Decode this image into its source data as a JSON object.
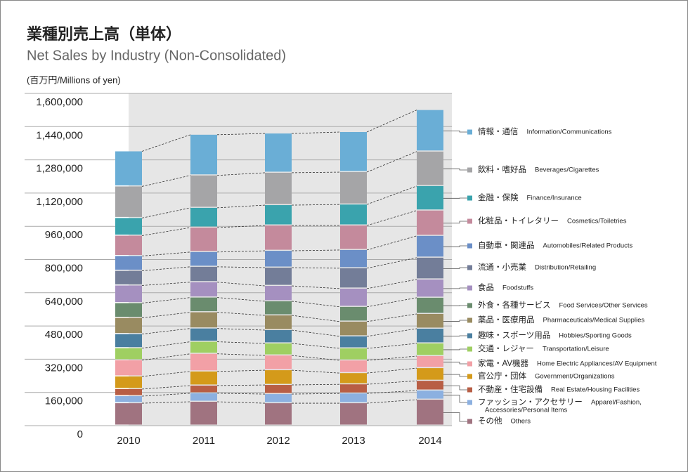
{
  "chart_data": {
    "type": "stacked_bar",
    "title": "業種別売上高（単体）",
    "subtitle": "Net Sales by Industry (Non-Consolidated)",
    "unit_label": "(百万円/Millions of yen)",
    "categories": [
      "2010",
      "2011",
      "2012",
      "2013",
      "2014"
    ],
    "ylim": [
      0,
      1600000
    ],
    "yticks": [
      0,
      {
        "value": 160000,
        "label": "160,000"
      },
      {
        "value": 320000,
        "label": "320,000"
      },
      {
        "value": 480000,
        "label": "480,000"
      },
      {
        "value": 640000,
        "label": "640,000"
      },
      {
        "value": 800000,
        "label": "800,000"
      },
      {
        "value": 960000,
        "label": "960,000"
      },
      {
        "value": 1120000,
        "label": "1,120,000"
      },
      {
        "value": 1280000,
        "label": "1,280,000"
      },
      {
        "value": 1440000,
        "label": "1,440,000"
      },
      {
        "value": 1600000,
        "label": "1,600,000"
      }
    ],
    "grid": true,
    "series": [
      {
        "name": "その他",
        "name_en": [
          "Others"
        ],
        "color": "#a07380",
        "values": [
          108000,
          115000,
          108000,
          108000,
          125000
        ]
      },
      {
        "name": "ファッション・アクセサリー",
        "name_en": [
          "Apparel/Fashion,",
          "Accessories/Personal Items"
        ],
        "color": "#8cb0e0",
        "values": [
          34000,
          41000,
          44000,
          47000,
          44000
        ]
      },
      {
        "name": "不動産・住宅設備",
        "name_en": [
          "Real Estate/Housing Facilities"
        ],
        "color": "#b85e45",
        "values": [
          34000,
          37000,
          44000,
          44000,
          47000
        ]
      },
      {
        "name": "官公庁・団体",
        "name_en": [
          "Government/Organizations"
        ],
        "color": "#d49a1a",
        "values": [
          61000,
          68000,
          71000,
          54000,
          61000
        ]
      },
      {
        "name": "家電・AV機器",
        "name_en": [
          "Home Electric Appliances/AV Equipment"
        ],
        "color": "#f2a0a6",
        "values": [
          78000,
          85000,
          71000,
          61000,
          58000
        ]
      },
      {
        "name": "交通・レジャー",
        "name_en": [
          "Transportation/Leisure"
        ],
        "color": "#9fcf62",
        "values": [
          58000,
          58000,
          58000,
          58000,
          61000
        ]
      },
      {
        "name": "趣味・スポーツ用品",
        "name_en": [
          "Hobbies/Sporting Goods"
        ],
        "color": "#4a7fa0",
        "values": [
          68000,
          64000,
          64000,
          58000,
          71000
        ]
      },
      {
        "name": "薬品・医療用品",
        "name_en": [
          "Pharmaceuticals/Medical Supplies"
        ],
        "color": "#998b61",
        "values": [
          78000,
          78000,
          71000,
          71000,
          71000
        ]
      },
      {
        "name": "外食・各種サービス",
        "name_en": [
          "Food Services/Other Services"
        ],
        "color": "#6a8c6e",
        "values": [
          71000,
          71000,
          68000,
          71000,
          78000
        ]
      },
      {
        "name": "食品",
        "name_en": [
          "Foodstuffs"
        ],
        "color": "#a590c0",
        "values": [
          85000,
          74000,
          74000,
          88000,
          88000
        ]
      },
      {
        "name": "流通・小売業",
        "name_en": [
          "Distribution/Retailing"
        ],
        "color": "#737d98",
        "values": [
          71000,
          74000,
          88000,
          98000,
          105000
        ]
      },
      {
        "name": "自動車・関連品",
        "name_en": [
          "Automobiles/Related Products"
        ],
        "color": "#6b8fc7",
        "values": [
          71000,
          71000,
          81000,
          88000,
          105000
        ]
      },
      {
        "name": "化粧品・トイレタリー",
        "name_en": [
          "Cosmetics/Toiletries"
        ],
        "color": "#c48a9c",
        "values": [
          98000,
          118000,
          122000,
          118000,
          122000
        ]
      },
      {
        "name": "金融・保険",
        "name_en": [
          "Finance/Insurance"
        ],
        "color": "#3aa3ad",
        "values": [
          85000,
          95000,
          98000,
          101000,
          118000
        ]
      },
      {
        "name": "飲料・嗜好品",
        "name_en": [
          "Beverages/Cigarettes"
        ],
        "color": "#a5a5a7",
        "values": [
          152000,
          156000,
          156000,
          156000,
          166000
        ]
      },
      {
        "name": "情報・通信",
        "name_en": [
          "Information/Communications"
        ],
        "color": "#6aaed6",
        "values": [
          169000,
          196000,
          189000,
          193000,
          200000
        ]
      }
    ]
  }
}
